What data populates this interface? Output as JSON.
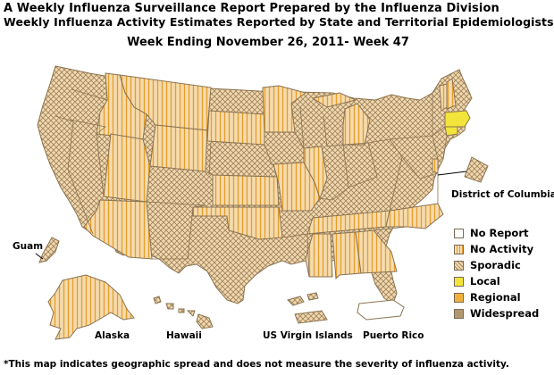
{
  "title_line1": "A Weekly Influenza Surveillance Report Prepared by the Influenza Division",
  "title_line2": "Weekly Influenza Activity Estimates Reported by State and Territorial Epidemiologists*",
  "week": "Week Ending November 26, 2011- Week 47",
  "footnote": "*This map indicates geographic spread and does not measure the severity of influenza activity.",
  "map_labels": {
    "dc": "District of Columbia",
    "guam": "Guam",
    "alaska": "Alaska",
    "hawaii": "Hawaii",
    "usvi": "US Virgin Islands",
    "puerto_rico": "Puerto Rico"
  },
  "legend": [
    {
      "label": "No Report",
      "key": "none"
    },
    {
      "label": "No Activity",
      "key": "noact"
    },
    {
      "label": "Sporadic",
      "key": "sporadic"
    },
    {
      "label": "Local",
      "key": "local"
    },
    {
      "label": "Regional",
      "key": "regional"
    },
    {
      "label": "Widespread",
      "key": "widespread"
    }
  ],
  "colors": {
    "tan": "#f3dcb3",
    "orange_stripe": "#e99e2a",
    "brown_hatch": "#a3835c",
    "local": "#f2e43a",
    "regional": "#f0b13a",
    "widespread": "#b29872",
    "outline": "#8a7350"
  },
  "state_activity": {
    "Massachusetts": "local",
    "Connecticut": "local",
    "Montana": "noact",
    "Idaho": "noact",
    "Utah": "noact",
    "Wyoming": "noact",
    "South Dakota": "noact",
    "Minnesota": "noact",
    "Kansas": "noact",
    "Oklahoma": "noact",
    "Missouri": "noact",
    "Arizona": "noact",
    "Michigan": "noact",
    "Tennessee": "noact",
    "Alabama": "noact",
    "Georgia": "noact",
    "North Carolina": "noact",
    "Mississippi": "noact",
    "Illinois": "noact",
    "Vermont": "noact",
    "New Hampshire": "noact",
    "Delaware": "noact",
    "Alaska": "noact",
    "Puerto Rico": "none",
    "other states and Guam, Hawaii, US Virgin Islands": "sporadic"
  }
}
